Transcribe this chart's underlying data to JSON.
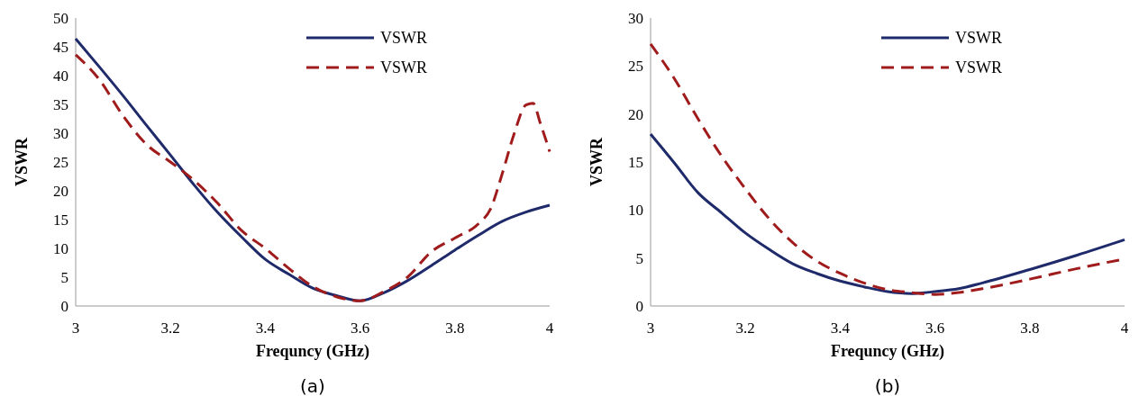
{
  "chart_data": [
    {
      "type": "line",
      "xlabel": "Frequncy (GHz)",
      "ylabel": "VSWR",
      "annotations": [
        "(a)"
      ],
      "xlim": [
        3,
        4
      ],
      "xticks": [
        3,
        3.2,
        3.4,
        3.6,
        3.8,
        4
      ],
      "ylim": [
        0,
        50
      ],
      "yticks": [
        0,
        5,
        10,
        15,
        20,
        25,
        30,
        35,
        40,
        45,
        50
      ],
      "grid": false,
      "legend": "top right",
      "series": [
        {
          "name": "VSWR",
          "color": "#1f2a6b",
          "line_style": "solid",
          "x": [
            3,
            3.05,
            3.1,
            3.15,
            3.2,
            3.25,
            3.3,
            3.35,
            3.4,
            3.45,
            3.5,
            3.55,
            3.6,
            3.65,
            3.7,
            3.75,
            3.8,
            3.85,
            3.9,
            3.95,
            4
          ],
          "values": [
            46.4,
            41.5,
            36.5,
            31.3,
            26.2,
            21,
            16.2,
            12,
            8.1,
            5.5,
            3.1,
            1.8,
            0.9,
            2.3,
            4.4,
            7,
            9.7,
            12.3,
            14.7,
            16.3,
            17.5
          ]
        },
        {
          "name": "VSWR",
          "color": "#a01c1c",
          "line_style": "dashed",
          "x": [
            3,
            3.05,
            3.1,
            3.15,
            3.2,
            3.25,
            3.3,
            3.35,
            3.4,
            3.45,
            3.5,
            3.55,
            3.6,
            3.65,
            3.7,
            3.75,
            3.8,
            3.85,
            3.875,
            3.9,
            3.925,
            3.95,
            3.965,
            3.98,
            4
          ],
          "values": [
            43.6,
            39.3,
            33,
            28,
            25,
            21.8,
            17.8,
            13.1,
            10,
            6.5,
            3.4,
            1.6,
            0.9,
            2.5,
            5,
            9.4,
            11.8,
            14.3,
            16.8,
            23,
            29.9,
            34.9,
            35.2,
            31.8,
            26.8
          ]
        }
      ]
    },
    {
      "type": "line",
      "xlabel": "Frequncy (GHz)",
      "ylabel": "VSWR",
      "annotations": [
        "(b)"
      ],
      "xlim": [
        3,
        4
      ],
      "xticks": [
        3,
        3.2,
        3.4,
        3.6,
        3.8,
        4
      ],
      "ylim": [
        0,
        30
      ],
      "yticks": [
        0,
        5,
        10,
        15,
        20,
        25,
        30
      ],
      "grid": false,
      "legend": "top right",
      "series": [
        {
          "name": "VSWR",
          "color": "#1f2a6b",
          "line_style": "solid",
          "x": [
            3,
            3.05,
            3.1,
            3.15,
            3.2,
            3.25,
            3.3,
            3.35,
            3.4,
            3.45,
            3.5,
            3.55,
            3.6,
            3.65,
            3.7,
            3.8,
            3.9,
            4
          ],
          "values": [
            17.9,
            14.9,
            11.8,
            9.7,
            7.6,
            5.9,
            4.4,
            3.4,
            2.6,
            2,
            1.5,
            1.3,
            1.5,
            1.8,
            2.4,
            3.8,
            5.3,
            6.9
          ]
        },
        {
          "name": "VSWR",
          "color": "#a01c1c",
          "line_style": "dashed",
          "x": [
            3,
            3.05,
            3.1,
            3.15,
            3.2,
            3.25,
            3.3,
            3.35,
            3.4,
            3.45,
            3.5,
            3.55,
            3.6,
            3.65,
            3.7,
            3.8,
            3.9,
            4
          ],
          "values": [
            27.3,
            23.7,
            19.5,
            15.6,
            12.2,
            9.1,
            6.6,
            4.7,
            3.4,
            2.4,
            1.7,
            1.4,
            1.2,
            1.4,
            1.8,
            2.8,
            3.9,
            4.9
          ]
        }
      ]
    }
  ]
}
